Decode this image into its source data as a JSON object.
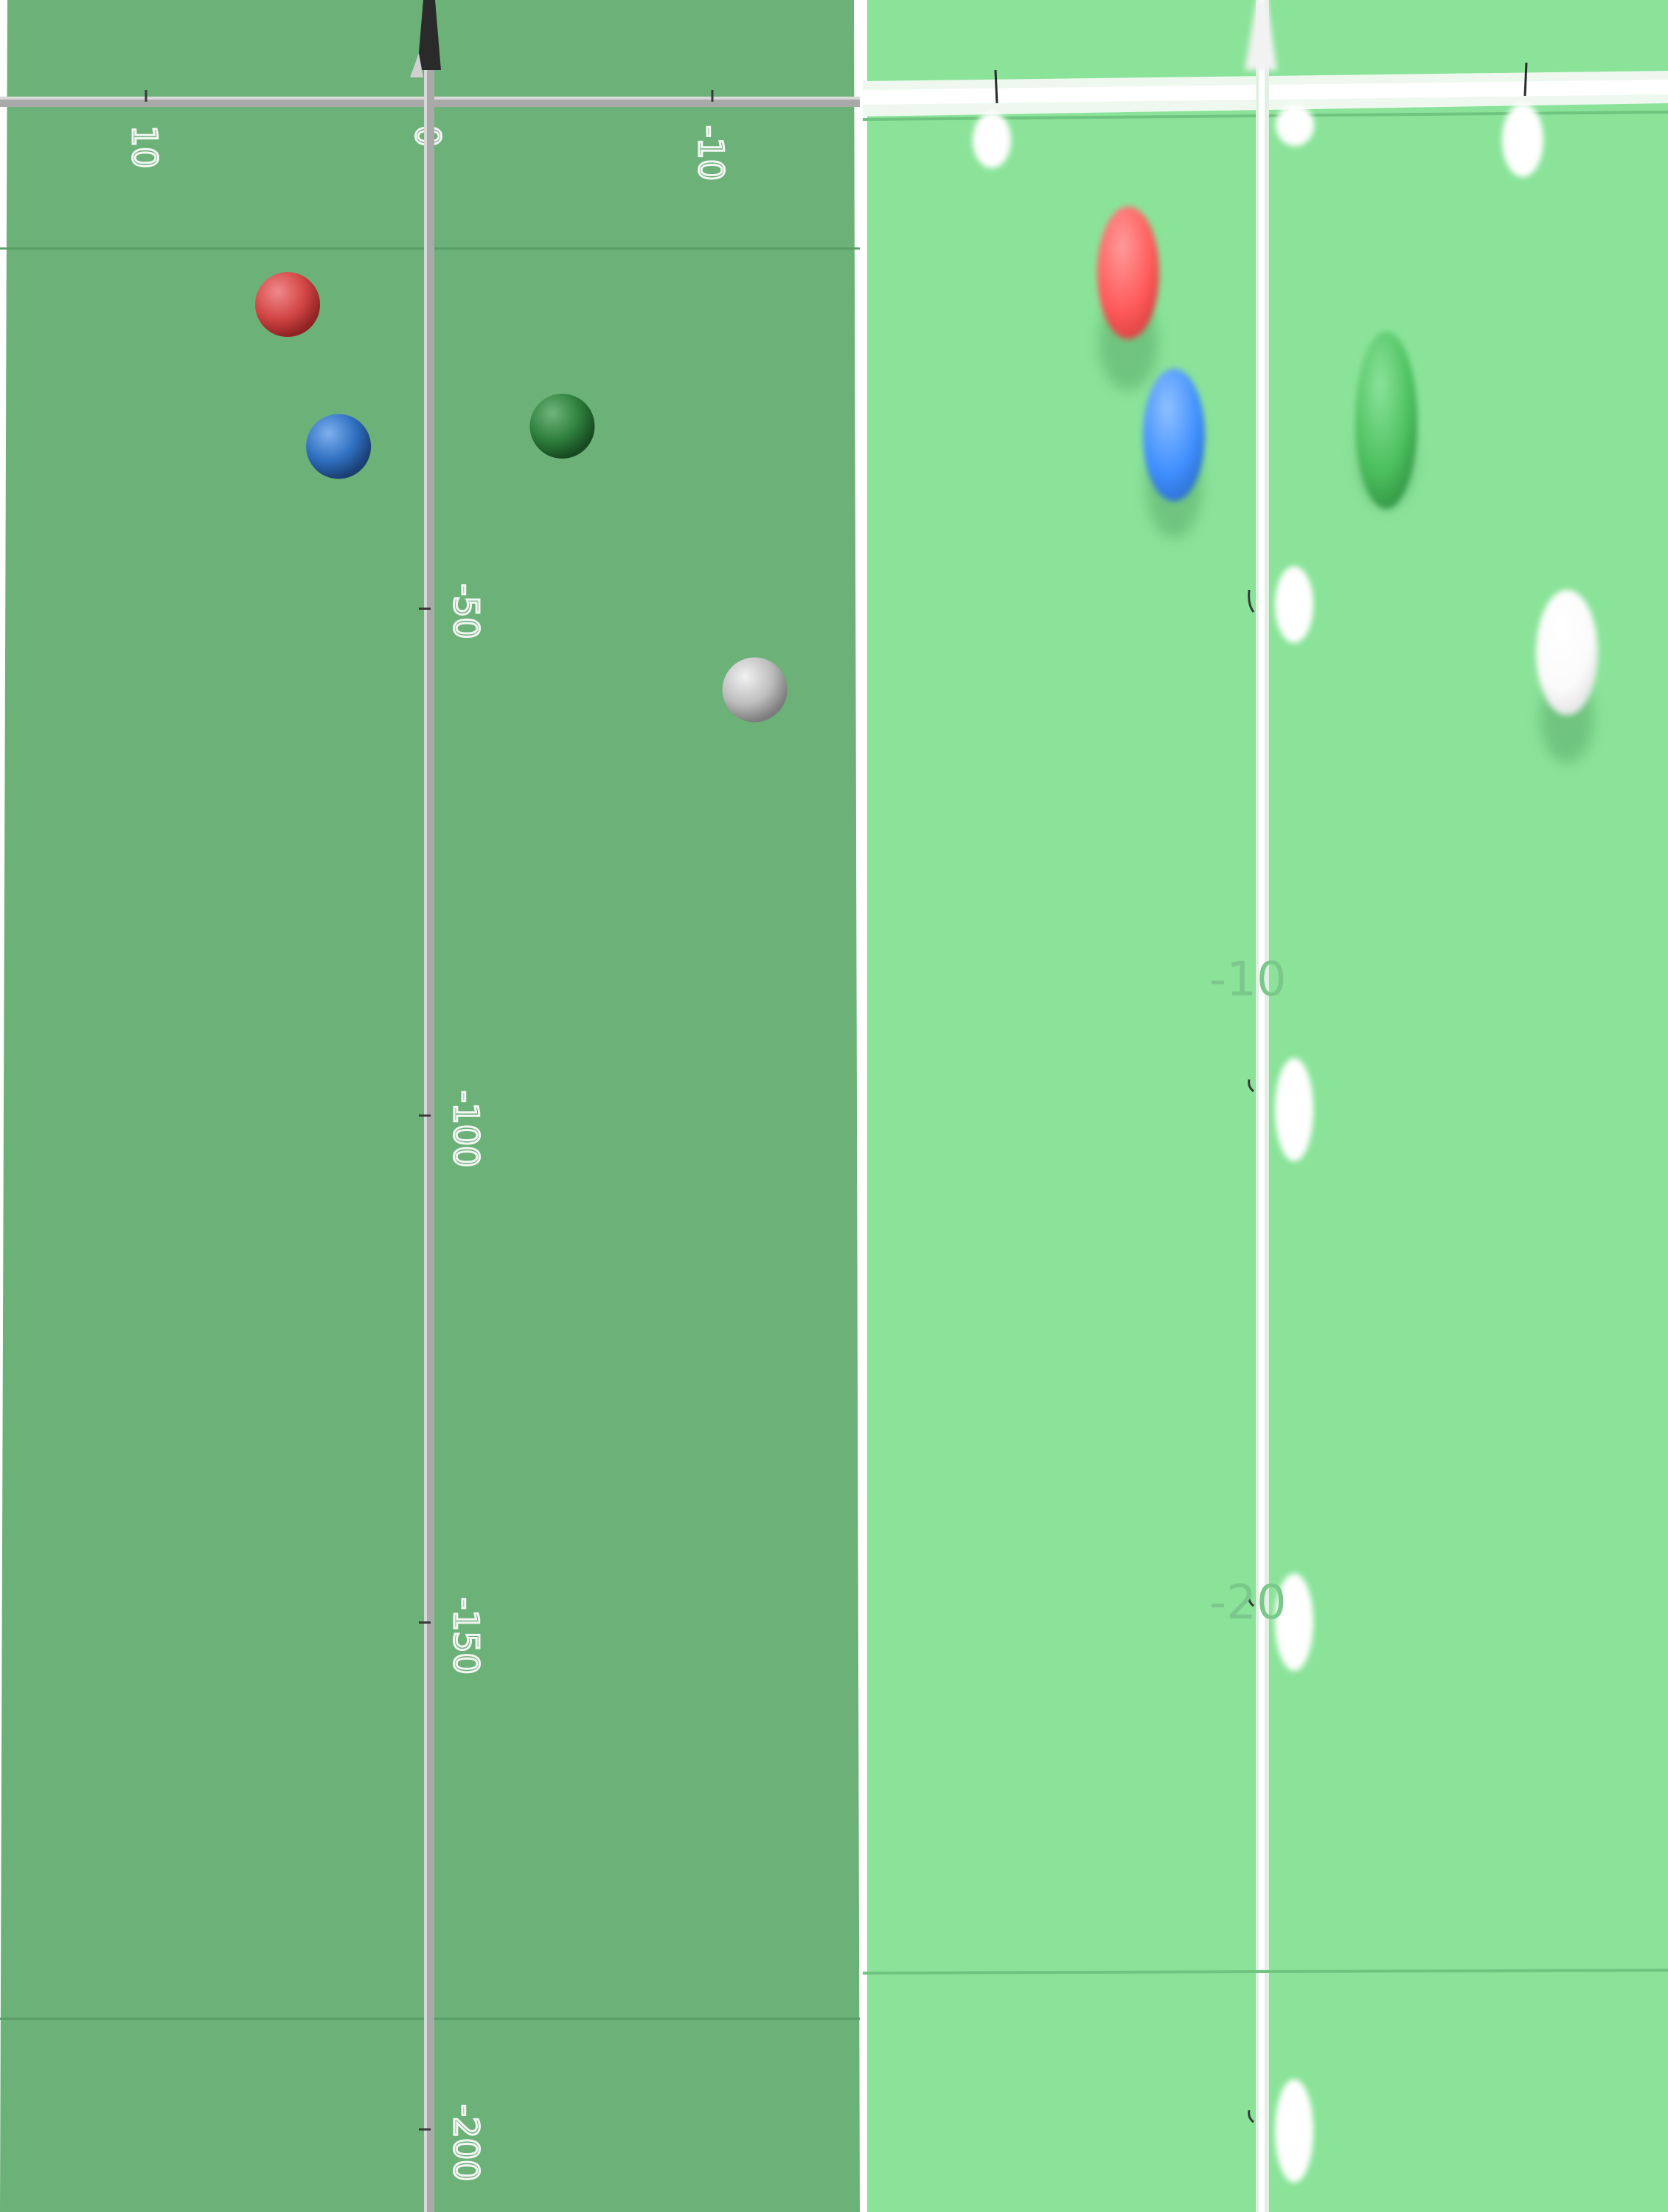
{
  "left_view": {
    "x_axis": {
      "tick_labels": [
        "10",
        "0",
        "-10"
      ],
      "tick_values": [
        10,
        0,
        -10
      ],
      "range": [
        15,
        -15
      ]
    },
    "y_axis": {
      "tick_labels": [
        "-50",
        "-100",
        "-150",
        "-200"
      ],
      "tick_values": [
        -50,
        -100,
        -150,
        -200
      ],
      "range": [
        10,
        -220
      ]
    },
    "markers": [
      {
        "name": "red",
        "color": "#d24545",
        "x": 5,
        "y": -20
      },
      {
        "name": "blue",
        "color": "#2f6fc0",
        "x": 3.2,
        "y": -34
      },
      {
        "name": "green",
        "color": "#2e7f3c",
        "x": -4.7,
        "y": -32
      },
      {
        "name": "gray",
        "color": "#b8b8b8",
        "x": -11.5,
        "y": -58
      }
    ],
    "background": "#6bb178"
  },
  "right_view": {
    "faint_labels": [
      "-10",
      "-20"
    ],
    "markers": [
      {
        "name": "red",
        "color": "#ff5a5a"
      },
      {
        "name": "blue",
        "color": "#3f8fff"
      },
      {
        "name": "green",
        "color": "#4cc05e"
      },
      {
        "name": "white",
        "color": "#ffffff"
      }
    ],
    "background": "#8ae399"
  }
}
